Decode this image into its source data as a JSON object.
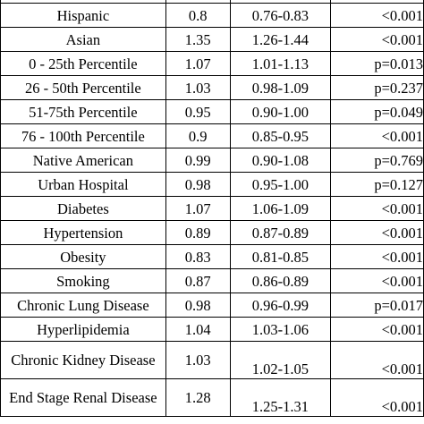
{
  "table": {
    "rows": [
      {
        "label": "Hispanic",
        "ratio": "0.8",
        "ci": "0.76-0.83",
        "p": "<0.001"
      },
      {
        "label": "Asian",
        "ratio": "1.35",
        "ci": "1.26-1.44",
        "p": "<0.001"
      },
      {
        "label": "0 - 25th Percentile",
        "ratio": "1.07",
        "ci": "1.01-1.13",
        "p": "p=0.013"
      },
      {
        "label": "26 - 50th Percentile",
        "ratio": "1.03",
        "ci": "0.98-1.09",
        "p": "p=0.237"
      },
      {
        "label": "51-75th Percentile",
        "ratio": "0.95",
        "ci": "0.90-1.00",
        "p": "p=0.049"
      },
      {
        "label": "76 - 100th Percentile",
        "ratio": "0.9",
        "ci": "0.85-0.95",
        "p": "<0.001"
      },
      {
        "label": "Native American",
        "ratio": "0.99",
        "ci": "0.90-1.08",
        "p": "p=0.769"
      },
      {
        "label": "Urban Hospital",
        "ratio": "0.98",
        "ci": "0.95-1.00",
        "p": "p=0.127"
      },
      {
        "label": "Diabetes",
        "ratio": "1.07",
        "ci": "1.06-1.09",
        "p": "<0.001"
      },
      {
        "label": "Hypertension",
        "ratio": "0.89",
        "ci": "0.87-0.89",
        "p": "<0.001"
      },
      {
        "label": "Obesity",
        "ratio": "0.83",
        "ci": "0.81-0.85",
        "p": "<0.001"
      },
      {
        "label": "Smoking",
        "ratio": "0.87",
        "ci": "0.86-0.89",
        "p": "<0.001"
      },
      {
        "label": "Chronic Lung Disease",
        "ratio": "0.98",
        "ci": "0.96-0.99",
        "p": "p=0.017"
      },
      {
        "label": "Hyperlipidemia",
        "ratio": "1.04",
        "ci": "1.03-1.06",
        "p": "<0.001"
      },
      {
        "label": "Chronic Kidney Disease",
        "ratio": "1.03",
        "ci": "1.02-1.05",
        "p": "<0.001"
      },
      {
        "label": "End Stage Renal Disease",
        "ratio": "1.28",
        "ci": "1.25-1.31",
        "p": "<0.001"
      }
    ]
  }
}
